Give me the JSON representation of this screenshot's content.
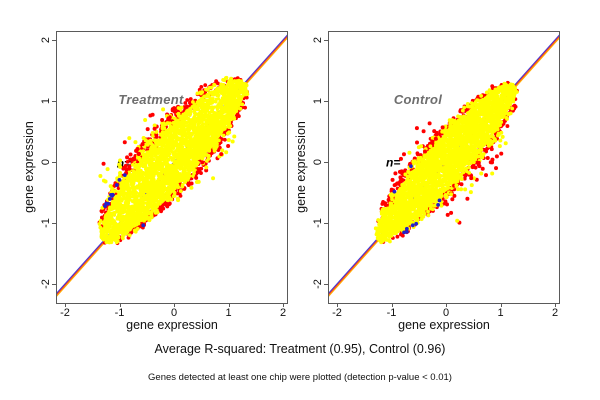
{
  "figure": {
    "caption": "Average R-squared: Treatment (0.95), Control (0.96)",
    "footnote": "Genes detected at least one chip were plotted (detection p-value < 0.01)"
  },
  "chart_data": {
    "type": "scatter",
    "layout": "two-panel side-by-side, shared style",
    "axes": {
      "xlabel": "gene expression",
      "ylabel": "gene expression",
      "xticks": [
        "-2",
        "-1",
        "0",
        "1",
        "2"
      ],
      "yticks": [
        "2",
        "1",
        "0",
        "-1",
        "-2"
      ],
      "xtick_values": [
        -2,
        -1,
        0,
        1,
        2
      ],
      "ytick_values": [
        2,
        1,
        0,
        -1,
        -2
      ],
      "xlim": [
        -2.15,
        2.07
      ],
      "ylim": [
        -2.31,
        2.13
      ],
      "grid": false
    },
    "colors": {
      "detected_point": "#ffff00",
      "flagged_point": "#ff0000",
      "low_point": "#2222cc",
      "line_blue": "#3c3cd8",
      "line_red": "#ee3333",
      "line_orange": "#ffaa00",
      "annotation_gray": "#6e6e6e",
      "axis": "#5a5a5a"
    },
    "lines": [
      {
        "name": "identity/fit line 1",
        "color": "#3c3cd8",
        "slope": 1,
        "intercept": 0
      },
      {
        "name": "fit line 2",
        "color": "#ee3333",
        "slope": 1,
        "intercept": -0.02
      },
      {
        "name": "fit line 3",
        "color": "#ffaa00",
        "slope": 1,
        "intercept": -0.045
      }
    ],
    "panels": [
      {
        "title": "Treatment",
        "n_label": "n=",
        "r_squared": 0.95,
        "seed": 42,
        "n_label_pos": [
          -1.05,
          -0.04
        ],
        "cloud": {
          "a": 1.3,
          "b": 0.44,
          "upper_mult": 1.12,
          "lower_mult": 0.78,
          "core_n": 3200,
          "halo_red_n": 420,
          "halo_yellow_n": 280,
          "upper_outliers": {
            "n": 62,
            "t_min": -0.85,
            "t_max": 0.5,
            "spread": 0.15,
            "red_frac": 0.55
          },
          "lower_outliers": {
            "n": 24,
            "t_min": -0.3,
            "t_max": 0.8,
            "spread": 0.17,
            "red_frac": 0.6
          },
          "blue": {
            "n": 11,
            "t_min": -1.15,
            "t_max": -0.55,
            "side": 1
          }
        }
      },
      {
        "title": "Control",
        "n_label": "n=",
        "r_squared": 0.96,
        "seed": 7,
        "n_label_pos": [
          -1.1,
          -0.02
        ],
        "cloud": {
          "a": 1.26,
          "b": 0.36,
          "upper_mult": 0.98,
          "lower_mult": 0.95,
          "core_n": 3200,
          "halo_red_n": 380,
          "halo_yellow_n": 260,
          "upper_outliers": {
            "n": 30,
            "t_min": -0.65,
            "t_max": 0.35,
            "spread": 0.14,
            "red_frac": 0.6
          },
          "lower_outliers": {
            "n": 50,
            "t_min": -0.5,
            "t_max": 0.75,
            "spread": 0.22,
            "red_frac": 0.55
          },
          "blue": {
            "n": 9,
            "t_min": -1.05,
            "t_max": -0.25,
            "side": -1
          }
        }
      }
    ],
    "caption": "Average R-squared: Treatment (0.95), Control (0.96)",
    "footnote": "Genes detected at least one chip were plotted (detection p-value < 0.01)"
  }
}
